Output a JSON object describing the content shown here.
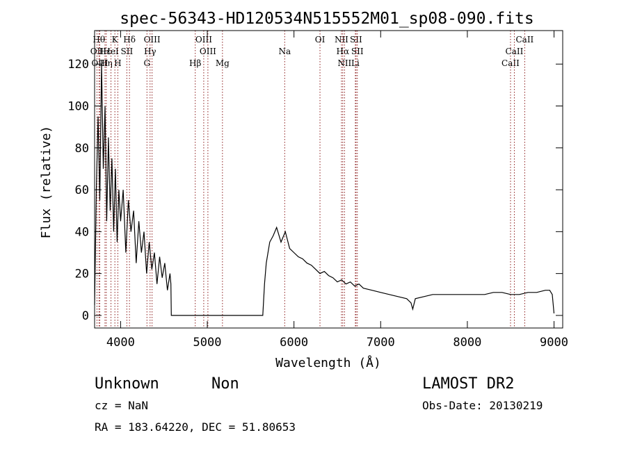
{
  "chart_data": {
    "type": "line",
    "title": "spec-56343-HD120534N515552M01_sp08-090.fits",
    "xlabel": "Wavelength (Å)",
    "ylabel": "Flux (relative)",
    "xlim": [
      3700,
      9100
    ],
    "ylim": [
      -6,
      136
    ],
    "xticks": [
      4000,
      5000,
      6000,
      7000,
      8000,
      9000
    ],
    "yticks": [
      0,
      20,
      40,
      60,
      80,
      100,
      120
    ],
    "line_color": "#000000",
    "marker_color": "#8b1a1a",
    "series": [
      {
        "x": [
          3700,
          3720,
          3740,
          3760,
          3780,
          3800,
          3820,
          3840,
          3860,
          3880,
          3900,
          3920,
          3940,
          3960,
          3980,
          4000,
          4030,
          4060,
          4090,
          4120,
          4150,
          4180,
          4210,
          4240,
          4270,
          4300,
          4330,
          4360,
          4390,
          4420,
          4450,
          4480,
          4510,
          4540,
          4570,
          4580,
          4585,
          5640,
          5660,
          5680,
          5720,
          5760,
          5800,
          5850,
          5900,
          5950,
          6000,
          6050,
          6100,
          6150,
          6200,
          6250,
          6300,
          6350,
          6400,
          6450,
          6500,
          6550,
          6600,
          6650,
          6700,
          6750,
          6800,
          6900,
          7000,
          7100,
          7200,
          7300,
          7350,
          7370,
          7400,
          7500,
          7600,
          7700,
          7800,
          7900,
          8000,
          8100,
          8200,
          8300,
          8400,
          8500,
          8600,
          8700,
          8800,
          8900,
          8950,
          8980,
          9000
        ],
        "y": [
          5,
          60,
          95,
          55,
          120,
          70,
          100,
          45,
          85,
          50,
          75,
          40,
          70,
          35,
          60,
          45,
          60,
          30,
          55,
          40,
          50,
          25,
          45,
          30,
          40,
          20,
          35,
          22,
          30,
          15,
          28,
          18,
          25,
          12,
          20,
          15,
          0,
          0,
          15,
          25,
          35,
          38,
          42,
          35,
          40,
          32,
          30,
          28,
          27,
          25,
          24,
          22,
          20,
          21,
          19,
          18,
          16,
          17,
          15,
          16,
          14,
          15,
          13,
          12,
          11,
          10,
          9,
          8,
          6,
          3,
          8,
          9,
          10,
          10,
          10,
          10,
          10,
          10,
          10,
          11,
          11,
          10,
          10,
          11,
          11,
          12,
          12,
          10,
          1
        ]
      }
    ],
    "line_markers": [
      {
        "label": "OII",
        "x": 3727,
        "row": 2
      },
      {
        "label": "Hθ",
        "x": 3750,
        "row": 1
      },
      {
        "label": "OIII",
        "x": 3760,
        "row": 3
      },
      {
        "label": "Hη",
        "x": 3835,
        "row": 3
      },
      {
        "label": "Hε",
        "x": 3820,
        "row": 2
      },
      {
        "label": "K",
        "x": 3934,
        "row": 1
      },
      {
        "label": "HeI",
        "x": 3889,
        "row": 2
      },
      {
        "label": "SII",
        "x": 4072,
        "row": 2
      },
      {
        "label": "H",
        "x": 3968,
        "row": 3
      },
      {
        "label": "Hδ",
        "x": 4102,
        "row": 1
      },
      {
        "label": "OIII",
        "x": 4363,
        "row": 1
      },
      {
        "label": "Hγ",
        "x": 4340,
        "row": 2
      },
      {
        "label": "G",
        "x": 4304,
        "row": 3
      },
      {
        "label": "Hβ",
        "x": 4861,
        "row": 3
      },
      {
        "label": "OIII",
        "x": 4959,
        "row": 1
      },
      {
        "label": "OIII",
        "x": 5007,
        "row": 2
      },
      {
        "label": "Mg",
        "x": 5175,
        "row": 3
      },
      {
        "label": "Na",
        "x": 5893,
        "row": 2
      },
      {
        "label": "OI",
        "x": 6300,
        "row": 1
      },
      {
        "label": "NII",
        "x": 6548,
        "row": 1
      },
      {
        "label": "Hα",
        "x": 6563,
        "row": 2
      },
      {
        "label": "NII",
        "x": 6583,
        "row": 3
      },
      {
        "label": "SII",
        "x": 6716,
        "row": 1
      },
      {
        "label": "SII",
        "x": 6731,
        "row": 2
      },
      {
        "label": "Li",
        "x": 6708,
        "row": 3
      },
      {
        "label": "CaII",
        "x": 8498,
        "row": 3
      },
      {
        "label": "CaII",
        "x": 8542,
        "row": 2
      },
      {
        "label": "CaII",
        "x": 8662,
        "row": 1
      }
    ]
  },
  "info": {
    "object_class": "Unknown",
    "object_subclass": "Non",
    "survey": "LAMOST DR2",
    "cz": "cz = NaN",
    "obs_date": "Obs-Date: 20130219",
    "coords": "RA = 183.64220, DEC =  51.80653"
  }
}
